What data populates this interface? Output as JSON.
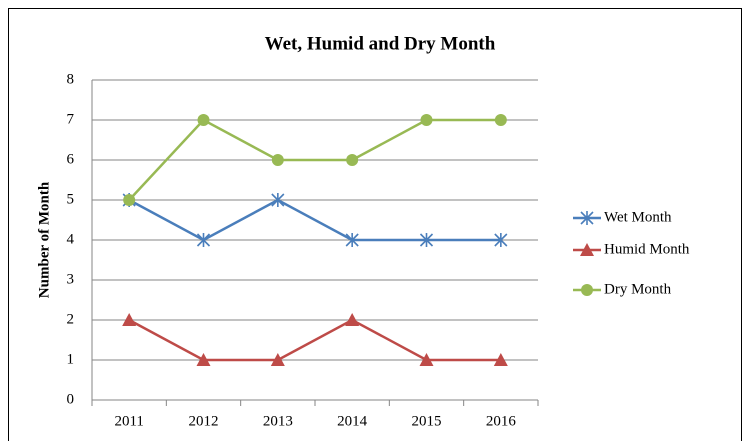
{
  "chart_data": {
    "type": "line",
    "title": "Wet, Humid and Dry Month",
    "y_label": "Number of Month",
    "categories": [
      "2011",
      "2012",
      "2013",
      "2014",
      "2015",
      "2016"
    ],
    "series": [
      {
        "name": "Wet Month",
        "color": "#4a7ebb",
        "marker": "asterisk",
        "values": [
          5,
          4,
          5,
          4,
          4,
          4
        ]
      },
      {
        "name": "Humid Month",
        "color": "#be4b48",
        "marker": "triangle",
        "values": [
          2,
          1,
          1,
          2,
          1,
          1
        ]
      },
      {
        "name": "Dry Month",
        "color": "#98b954",
        "marker": "circle",
        "values": [
          5,
          7,
          6,
          6,
          7,
          7
        ]
      }
    ],
    "ylim": [
      0,
      8
    ],
    "yticks": [
      0,
      1,
      2,
      3,
      4,
      5,
      6,
      7,
      8
    ],
    "grid": true,
    "legend": "right"
  }
}
